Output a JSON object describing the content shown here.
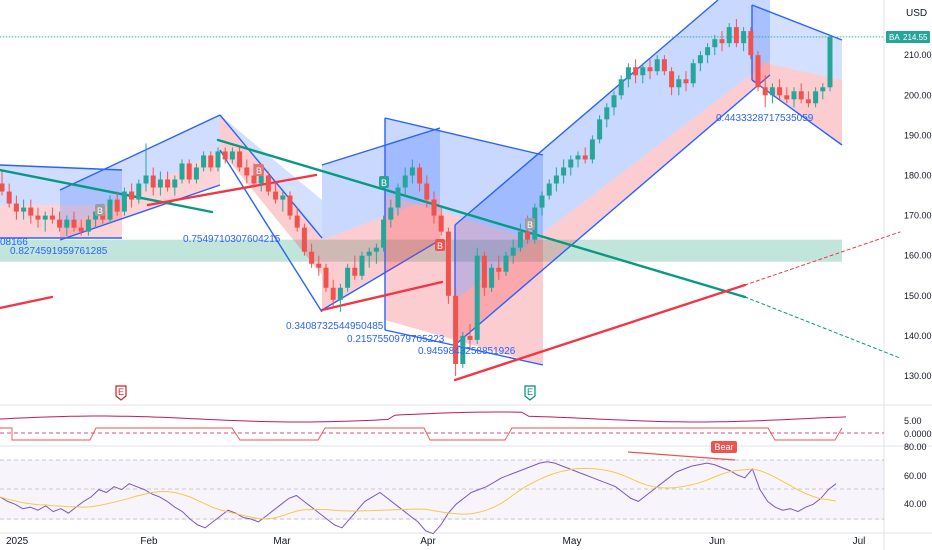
{
  "header": {
    "currency": "USD"
  },
  "price_tag": {
    "symbol": "BA",
    "value": "214.55"
  },
  "colors": {
    "up": "#26a69a",
    "down": "#ef5350",
    "channel_up": "#2962ff",
    "channel_down": "#f23645",
    "trend_green": "#089981",
    "trend_red": "#f23645",
    "support_zone": "#8fd0be",
    "rsi_line": "#7e57c2",
    "rsi_ma": "#f7c948",
    "osc_line": "#c2185b"
  },
  "chart_data": {
    "type": "candlestick",
    "x_axis": {
      "ticks": [
        "2025",
        "Feb",
        "Mar",
        "Apr",
        "May",
        "Jun",
        "Jul"
      ]
    },
    "price_axis": {
      "ticks": [
        "130.00",
        "140.00",
        "150.00",
        "160.00",
        "170.00",
        "180.00",
        "190.00",
        "200.00",
        "210.00"
      ],
      "range": [
        125,
        225
      ]
    },
    "osc_axis": {
      "ticks": [
        "5.00",
        "0.0000"
      ]
    },
    "rsi_axis": {
      "ticks": [
        "80.00",
        "60.00",
        "40.00"
      ]
    },
    "support_zone": [
      158.5,
      164
    ],
    "last_price": 214.55,
    "annotations": [
      "08166",
      "0.8274591959761285",
      "0.7549710307604215",
      "0.3408732544950485",
      "0.2157550979705223",
      "0.9459843258851926",
      "0.4433328717535059"
    ],
    "markers": {
      "earnings": [
        "E",
        "E"
      ],
      "buy": [
        "B",
        "B",
        "B",
        "B",
        "B"
      ],
      "rsi_label": "Bear"
    },
    "candles": [
      {
        "d": 0,
        "o": 178,
        "h": 181,
        "l": 175,
        "c": 176
      },
      {
        "d": 1,
        "o": 176,
        "h": 178,
        "l": 172,
        "c": 173
      },
      {
        "d": 2,
        "o": 173,
        "h": 175,
        "l": 169,
        "c": 171
      },
      {
        "d": 3,
        "o": 171,
        "h": 174,
        "l": 169,
        "c": 172
      },
      {
        "d": 4,
        "o": 172,
        "h": 174,
        "l": 168,
        "c": 170
      },
      {
        "d": 5,
        "o": 170,
        "h": 172,
        "l": 167,
        "c": 169
      },
      {
        "d": 6,
        "o": 169,
        "h": 171,
        "l": 166,
        "c": 170
      },
      {
        "d": 7,
        "o": 170,
        "h": 172,
        "l": 168,
        "c": 169
      },
      {
        "d": 8,
        "o": 169,
        "h": 171,
        "l": 166,
        "c": 167
      },
      {
        "d": 9,
        "o": 167,
        "h": 170,
        "l": 165,
        "c": 169
      },
      {
        "d": 10,
        "o": 169,
        "h": 171,
        "l": 166,
        "c": 167
      },
      {
        "d": 11,
        "o": 167,
        "h": 169,
        "l": 165,
        "c": 166
      },
      {
        "d": 12,
        "o": 166,
        "h": 170,
        "l": 165,
        "c": 169
      },
      {
        "d": 13,
        "o": 169,
        "h": 172,
        "l": 167,
        "c": 171
      },
      {
        "d": 14,
        "o": 171,
        "h": 173,
        "l": 168,
        "c": 169
      },
      {
        "d": 15,
        "o": 169,
        "h": 175,
        "l": 168,
        "c": 174
      },
      {
        "d": 16,
        "o": 174,
        "h": 176,
        "l": 170,
        "c": 171
      },
      {
        "d": 17,
        "o": 171,
        "h": 177,
        "l": 170,
        "c": 176
      },
      {
        "d": 18,
        "o": 176,
        "h": 178,
        "l": 172,
        "c": 174
      },
      {
        "d": 19,
        "o": 174,
        "h": 179,
        "l": 173,
        "c": 178
      },
      {
        "d": 20,
        "o": 178,
        "h": 188,
        "l": 176,
        "c": 180
      },
      {
        "d": 21,
        "o": 180,
        "h": 182,
        "l": 175,
        "c": 177
      },
      {
        "d": 22,
        "o": 177,
        "h": 181,
        "l": 175,
        "c": 179
      },
      {
        "d": 23,
        "o": 179,
        "h": 181,
        "l": 176,
        "c": 177
      },
      {
        "d": 24,
        "o": 177,
        "h": 180,
        "l": 175,
        "c": 179
      },
      {
        "d": 25,
        "o": 179,
        "h": 184,
        "l": 178,
        "c": 183
      },
      {
        "d": 26,
        "o": 183,
        "h": 184,
        "l": 178,
        "c": 179
      },
      {
        "d": 27,
        "o": 179,
        "h": 183,
        "l": 178,
        "c": 182
      },
      {
        "d": 28,
        "o": 182,
        "h": 186,
        "l": 181,
        "c": 185
      },
      {
        "d": 29,
        "o": 185,
        "h": 186,
        "l": 181,
        "c": 182
      },
      {
        "d": 30,
        "o": 182,
        "h": 187,
        "l": 181,
        "c": 186
      },
      {
        "d": 31,
        "o": 186,
        "h": 187,
        "l": 183,
        "c": 184
      },
      {
        "d": 32,
        "o": 184,
        "h": 187,
        "l": 183,
        "c": 186
      },
      {
        "d": 33,
        "o": 186,
        "h": 187,
        "l": 181,
        "c": 182
      },
      {
        "d": 34,
        "o": 182,
        "h": 184,
        "l": 178,
        "c": 180
      },
      {
        "d": 35,
        "o": 180,
        "h": 183,
        "l": 177,
        "c": 178
      },
      {
        "d": 36,
        "o": 178,
        "h": 181,
        "l": 176,
        "c": 180
      },
      {
        "d": 37,
        "o": 180,
        "h": 181,
        "l": 175,
        "c": 176
      },
      {
        "d": 38,
        "o": 176,
        "h": 178,
        "l": 173,
        "c": 174
      },
      {
        "d": 39,
        "o": 174,
        "h": 176,
        "l": 171,
        "c": 175
      },
      {
        "d": 40,
        "o": 175,
        "h": 176,
        "l": 169,
        "c": 170
      },
      {
        "d": 41,
        "o": 170,
        "h": 172,
        "l": 166,
        "c": 167
      },
      {
        "d": 42,
        "o": 167,
        "h": 168,
        "l": 160,
        "c": 161
      },
      {
        "d": 43,
        "o": 161,
        "h": 163,
        "l": 157,
        "c": 158
      },
      {
        "d": 44,
        "o": 158,
        "h": 160,
        "l": 155,
        "c": 157
      },
      {
        "d": 45,
        "o": 157,
        "h": 158,
        "l": 151,
        "c": 152
      },
      {
        "d": 46,
        "o": 152,
        "h": 154,
        "l": 147,
        "c": 149
      },
      {
        "d": 47,
        "o": 149,
        "h": 153,
        "l": 146,
        "c": 152
      },
      {
        "d": 48,
        "o": 152,
        "h": 158,
        "l": 151,
        "c": 157
      },
      {
        "d": 49,
        "o": 157,
        "h": 160,
        "l": 154,
        "c": 155
      },
      {
        "d": 50,
        "o": 155,
        "h": 161,
        "l": 154,
        "c": 160
      },
      {
        "d": 51,
        "o": 160,
        "h": 162,
        "l": 157,
        "c": 161
      },
      {
        "d": 52,
        "o": 161,
        "h": 163,
        "l": 158,
        "c": 162
      },
      {
        "d": 53,
        "o": 162,
        "h": 170,
        "l": 161,
        "c": 169
      },
      {
        "d": 54,
        "o": 169,
        "h": 174,
        "l": 167,
        "c": 172
      },
      {
        "d": 55,
        "o": 172,
        "h": 178,
        "l": 170,
        "c": 177
      },
      {
        "d": 56,
        "o": 177,
        "h": 182,
        "l": 175,
        "c": 180
      },
      {
        "d": 57,
        "o": 180,
        "h": 184,
        "l": 178,
        "c": 182
      },
      {
        "d": 58,
        "o": 182,
        "h": 183,
        "l": 176,
        "c": 178
      },
      {
        "d": 59,
        "o": 178,
        "h": 180,
        "l": 172,
        "c": 174
      },
      {
        "d": 60,
        "o": 174,
        "h": 176,
        "l": 168,
        "c": 170
      },
      {
        "d": 61,
        "o": 170,
        "h": 172,
        "l": 165,
        "c": 166
      },
      {
        "d": 62,
        "o": 166,
        "h": 167,
        "l": 148,
        "c": 150
      },
      {
        "d": 63,
        "o": 150,
        "h": 152,
        "l": 130,
        "c": 133
      },
      {
        "d": 64,
        "o": 133,
        "h": 141,
        "l": 132,
        "c": 140
      },
      {
        "d": 65,
        "o": 140,
        "h": 143,
        "l": 137,
        "c": 139
      },
      {
        "d": 66,
        "o": 139,
        "h": 162,
        "l": 138,
        "c": 160
      },
      {
        "d": 67,
        "o": 160,
        "h": 161,
        "l": 150,
        "c": 152
      },
      {
        "d": 68,
        "o": 152,
        "h": 158,
        "l": 151,
        "c": 157
      },
      {
        "d": 69,
        "o": 157,
        "h": 160,
        "l": 154,
        "c": 156
      },
      {
        "d": 70,
        "o": 156,
        "h": 161,
        "l": 155,
        "c": 160
      },
      {
        "d": 71,
        "o": 160,
        "h": 164,
        "l": 158,
        "c": 162
      },
      {
        "d": 72,
        "o": 162,
        "h": 168,
        "l": 161,
        "c": 166
      },
      {
        "d": 73,
        "o": 166,
        "h": 170,
        "l": 163,
        "c": 164
      },
      {
        "d": 74,
        "o": 164,
        "h": 173,
        "l": 163,
        "c": 172
      },
      {
        "d": 75,
        "o": 172,
        "h": 176,
        "l": 170,
        "c": 175
      },
      {
        "d": 76,
        "o": 175,
        "h": 179,
        "l": 174,
        "c": 178
      },
      {
        "d": 77,
        "o": 178,
        "h": 182,
        "l": 176,
        "c": 180
      },
      {
        "d": 78,
        "o": 180,
        "h": 184,
        "l": 178,
        "c": 182
      },
      {
        "d": 79,
        "o": 182,
        "h": 185,
        "l": 180,
        "c": 184
      },
      {
        "d": 80,
        "o": 184,
        "h": 186,
        "l": 182,
        "c": 185
      },
      {
        "d": 81,
        "o": 185,
        "h": 187,
        "l": 183,
        "c": 184
      },
      {
        "d": 82,
        "o": 184,
        "h": 190,
        "l": 183,
        "c": 189
      },
      {
        "d": 83,
        "o": 189,
        "h": 195,
        "l": 188,
        "c": 194
      },
      {
        "d": 84,
        "o": 194,
        "h": 198,
        "l": 192,
        "c": 197
      },
      {
        "d": 85,
        "o": 197,
        "h": 201,
        "l": 195,
        "c": 200
      },
      {
        "d": 86,
        "o": 200,
        "h": 205,
        "l": 199,
        "c": 204
      },
      {
        "d": 87,
        "o": 204,
        "h": 208,
        "l": 202,
        "c": 207
      },
      {
        "d": 88,
        "o": 207,
        "h": 209,
        "l": 203,
        "c": 205
      },
      {
        "d": 89,
        "o": 205,
        "h": 208,
        "l": 203,
        "c": 207
      },
      {
        "d": 90,
        "o": 207,
        "h": 209,
        "l": 204,
        "c": 206
      },
      {
        "d": 91,
        "o": 206,
        "h": 210,
        "l": 205,
        "c": 209
      },
      {
        "d": 92,
        "o": 209,
        "h": 210,
        "l": 205,
        "c": 206
      },
      {
        "d": 93,
        "o": 206,
        "h": 207,
        "l": 200,
        "c": 202
      },
      {
        "d": 94,
        "o": 202,
        "h": 205,
        "l": 200,
        "c": 204
      },
      {
        "d": 95,
        "o": 204,
        "h": 206,
        "l": 201,
        "c": 203
      },
      {
        "d": 96,
        "o": 203,
        "h": 209,
        "l": 202,
        "c": 208
      },
      {
        "d": 97,
        "o": 208,
        "h": 211,
        "l": 206,
        "c": 210
      },
      {
        "d": 98,
        "o": 210,
        "h": 213,
        "l": 208,
        "c": 212
      },
      {
        "d": 99,
        "o": 212,
        "h": 215,
        "l": 210,
        "c": 214
      },
      {
        "d": 100,
        "o": 214,
        "h": 216,
        "l": 211,
        "c": 213
      },
      {
        "d": 101,
        "o": 213,
        "h": 218,
        "l": 212,
        "c": 217
      },
      {
        "d": 102,
        "o": 217,
        "h": 219,
        "l": 212,
        "c": 213
      },
      {
        "d": 103,
        "o": 213,
        "h": 217,
        "l": 211,
        "c": 216
      },
      {
        "d": 104,
        "o": 216,
        "h": 217,
        "l": 209,
        "c": 210
      },
      {
        "d": 105,
        "o": 210,
        "h": 211,
        "l": 201,
        "c": 202
      },
      {
        "d": 106,
        "o": 202,
        "h": 205,
        "l": 197,
        "c": 200
      },
      {
        "d": 107,
        "o": 200,
        "h": 203,
        "l": 198,
        "c": 202
      },
      {
        "d": 108,
        "o": 202,
        "h": 204,
        "l": 199,
        "c": 200
      },
      {
        "d": 109,
        "o": 200,
        "h": 202,
        "l": 198,
        "c": 199
      },
      {
        "d": 110,
        "o": 199,
        "h": 202,
        "l": 197,
        "c": 201
      },
      {
        "d": 111,
        "o": 201,
        "h": 203,
        "l": 198,
        "c": 199
      },
      {
        "d": 112,
        "o": 199,
        "h": 201,
        "l": 197,
        "c": 198
      },
      {
        "d": 113,
        "o": 198,
        "h": 202,
        "l": 197,
        "c": 201
      },
      {
        "d": 114,
        "o": 201,
        "h": 203,
        "l": 199,
        "c": 202
      },
      {
        "d": 115,
        "o": 202,
        "h": 215,
        "l": 201,
        "c": 214.55
      }
    ]
  }
}
